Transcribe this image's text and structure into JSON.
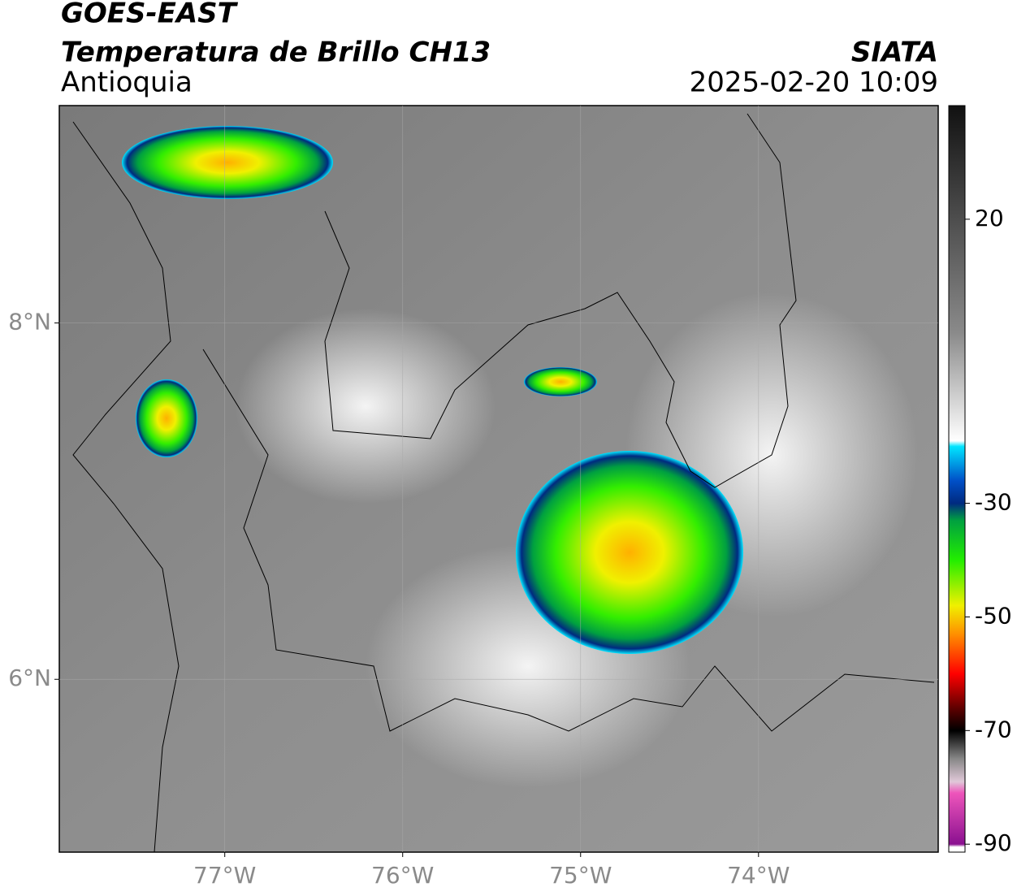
{
  "header": {
    "title": "GOES-EAST",
    "subtitle": "Temperatura de Brillo CH13",
    "region": "Antioquia",
    "source": "SIATA",
    "datetime": "2025-02-20 10:09"
  },
  "map": {
    "xlim": [
      -77.93,
      -72.99
    ],
    "ylim": [
      5.03,
      9.22
    ],
    "xticks": [
      {
        "value": -77,
        "label": "77°W"
      },
      {
        "value": -76,
        "label": "76°W"
      },
      {
        "value": -75,
        "label": "75°W"
      },
      {
        "value": -74,
        "label": "74°W"
      }
    ],
    "yticks": [
      {
        "value": 8,
        "label": "8°N"
      },
      {
        "value": 6,
        "label": "6°N"
      }
    ],
    "grid": true
  },
  "colorbar": {
    "lim": [
      -91.4,
      40
    ],
    "ticks": [
      20,
      -30,
      -50,
      -70,
      -90
    ],
    "stops": [
      {
        "value": 40,
        "color": "#111111"
      },
      {
        "value": 0,
        "color": "#8a8a8a"
      },
      {
        "value": -19,
        "color": "#ffffff"
      },
      {
        "value": -20,
        "color": "#00e5ff"
      },
      {
        "value": -26,
        "color": "#0050c8"
      },
      {
        "value": -30,
        "color": "#002a80"
      },
      {
        "value": -33,
        "color": "#00a040"
      },
      {
        "value": -40,
        "color": "#22ee00"
      },
      {
        "value": -48,
        "color": "#f0f000"
      },
      {
        "value": -53,
        "color": "#ff9000"
      },
      {
        "value": -60,
        "color": "#ff0000"
      },
      {
        "value": -66,
        "color": "#600000"
      },
      {
        "value": -70,
        "color": "#000000"
      },
      {
        "value": -75,
        "color": "#888888"
      },
      {
        "value": -79,
        "color": "#e0c8d8"
      },
      {
        "value": -81,
        "color": "#ee55bb"
      },
      {
        "value": -90,
        "color": "#8a1090"
      },
      {
        "value": -90.5,
        "color": "#ffffff"
      }
    ]
  }
}
